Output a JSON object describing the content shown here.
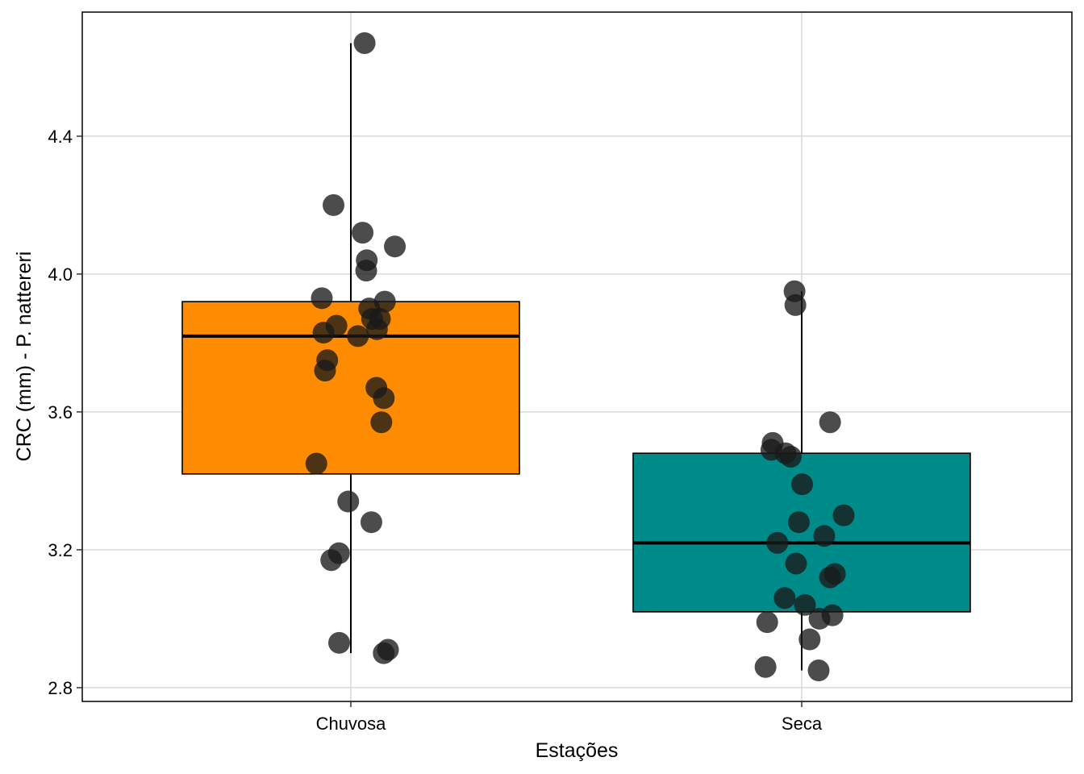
{
  "chart_data": {
    "type": "box",
    "title": "",
    "xlabel": "Estações",
    "ylabel": "CRC (mm) - P. nattereri",
    "categories": [
      "Chuvosa",
      "Seca"
    ],
    "ylim": [
      2.76,
      4.76
    ],
    "yticks": [
      2.8,
      3.2,
      3.6,
      4.0,
      4.4
    ],
    "ytick_labels": [
      "2.8",
      "3.2",
      "3.6",
      "4.0",
      "4.4"
    ],
    "grid": true,
    "legend": "none",
    "boxes": [
      {
        "category": "Chuvosa",
        "fill": "#FF8C00",
        "whisker_low": 2.9,
        "q1": 3.42,
        "median": 3.82,
        "q3": 3.92,
        "whisker_high": 4.67
      },
      {
        "category": "Seca",
        "fill": "#008B8B",
        "whisker_low": 2.85,
        "q1": 3.02,
        "median": 3.22,
        "q3": 3.48,
        "whisker_high": 3.95
      }
    ],
    "points_color": "#1a1a1a",
    "points": [
      {
        "category": "Chuvosa",
        "values": [
          4.67,
          4.2,
          4.12,
          4.08,
          4.04,
          4.01,
          3.93,
          3.92,
          3.9,
          3.87,
          3.87,
          3.85,
          3.84,
          3.83,
          3.82,
          3.75,
          3.72,
          3.67,
          3.64,
          3.57,
          3.45,
          3.34,
          3.28,
          3.19,
          3.17,
          2.93,
          2.91,
          2.9
        ]
      },
      {
        "category": "Seca",
        "values": [
          3.95,
          3.91,
          3.57,
          3.51,
          3.49,
          3.48,
          3.47,
          3.39,
          3.3,
          3.28,
          3.24,
          3.22,
          3.16,
          3.13,
          3.12,
          3.06,
          3.04,
          3.01,
          3.0,
          2.99,
          2.94,
          2.86,
          2.85
        ]
      }
    ]
  }
}
